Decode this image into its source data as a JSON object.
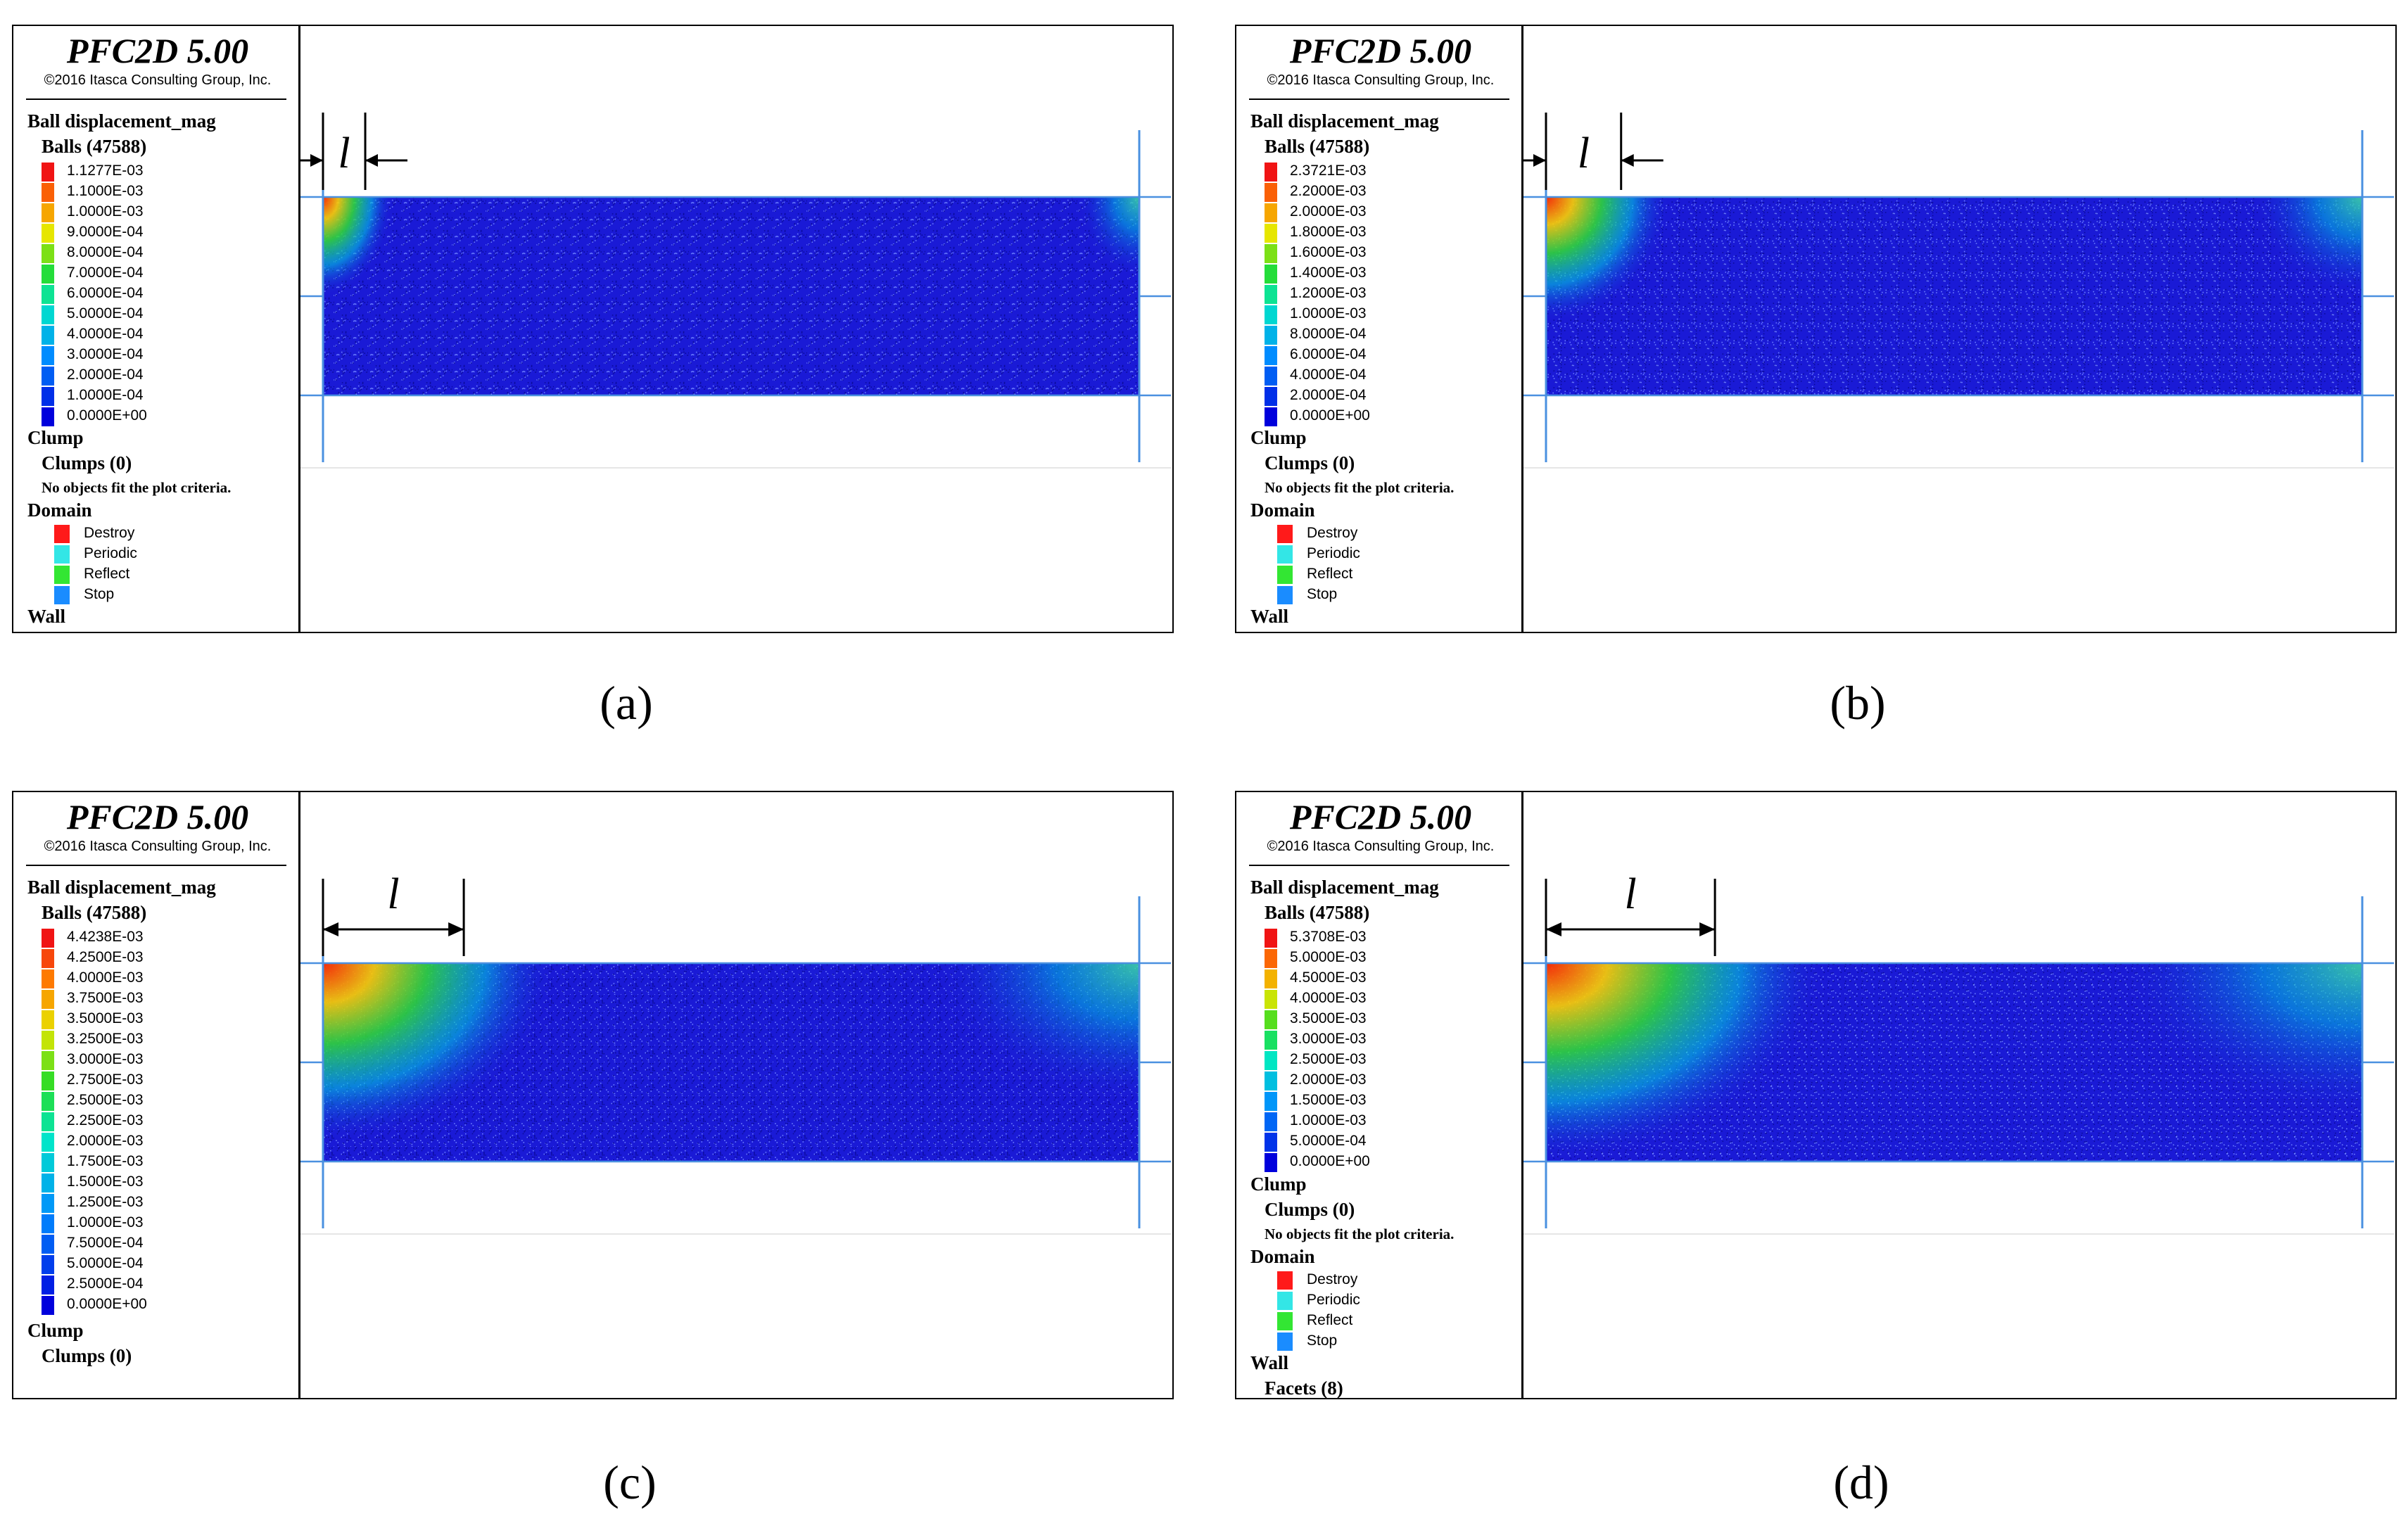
{
  "header": {
    "title": "PFC2D 5.00",
    "copyright": "©2016 Itasca Consulting Group, Inc."
  },
  "labels": {
    "ball_disp": "Ball displacement_mag",
    "balls": "Balls (47588)",
    "clump": "Clump",
    "clumps": "Clumps (0)",
    "no_objects": "No objects fit the plot criteria.",
    "domain": "Domain",
    "wall": "Wall",
    "facets": "Facets (8)",
    "length_symbol": "l"
  },
  "domain_items": [
    {
      "label": "Destroy",
      "color": "#ff1a1a"
    },
    {
      "label": "Periodic",
      "color": "#33e6e6"
    },
    {
      "label": "Reflect",
      "color": "#33e633"
    },
    {
      "label": "Stop",
      "color": "#1a8cff"
    }
  ],
  "panels": [
    {
      "caption": "(a)",
      "legend": [
        "1.1277E-03",
        "1.1000E-03",
        "1.0000E-03",
        "9.0000E-04",
        "8.0000E-04",
        "7.0000E-04",
        "6.0000E-04",
        "5.0000E-04",
        "4.0000E-04",
        "3.0000E-04",
        "2.0000E-04",
        "1.0000E-04",
        "0.0000E+00"
      ],
      "spread": 0.045
    },
    {
      "caption": "(b)",
      "legend": [
        "2.3721E-03",
        "2.2000E-03",
        "2.0000E-03",
        "1.8000E-03",
        "1.6000E-03",
        "1.4000E-03",
        "1.2000E-03",
        "1.0000E-03",
        "8.0000E-04",
        "6.0000E-04",
        "4.0000E-04",
        "2.0000E-04",
        "0.0000E+00"
      ],
      "spread": 0.08
    },
    {
      "caption": "(c)",
      "legend": [
        "4.4238E-03",
        "4.2500E-03",
        "4.0000E-03",
        "3.7500E-03",
        "3.5000E-03",
        "3.2500E-03",
        "3.0000E-03",
        "2.7500E-03",
        "2.5000E-03",
        "2.2500E-03",
        "2.0000E-03",
        "1.7500E-03",
        "1.5000E-03",
        "1.2500E-03",
        "1.0000E-03",
        "7.5000E-04",
        "5.0000E-04",
        "2.5000E-04",
        "0.0000E+00"
      ],
      "spread": 0.15
    },
    {
      "caption": "(d)",
      "legend": [
        "5.3708E-03",
        "5.0000E-03",
        "4.5000E-03",
        "4.0000E-03",
        "3.5000E-03",
        "3.0000E-03",
        "2.5000E-03",
        "2.0000E-03",
        "1.5000E-03",
        "1.0000E-03",
        "5.0000E-04",
        "0.0000E+00"
      ],
      "spread": 0.18
    }
  ]
}
